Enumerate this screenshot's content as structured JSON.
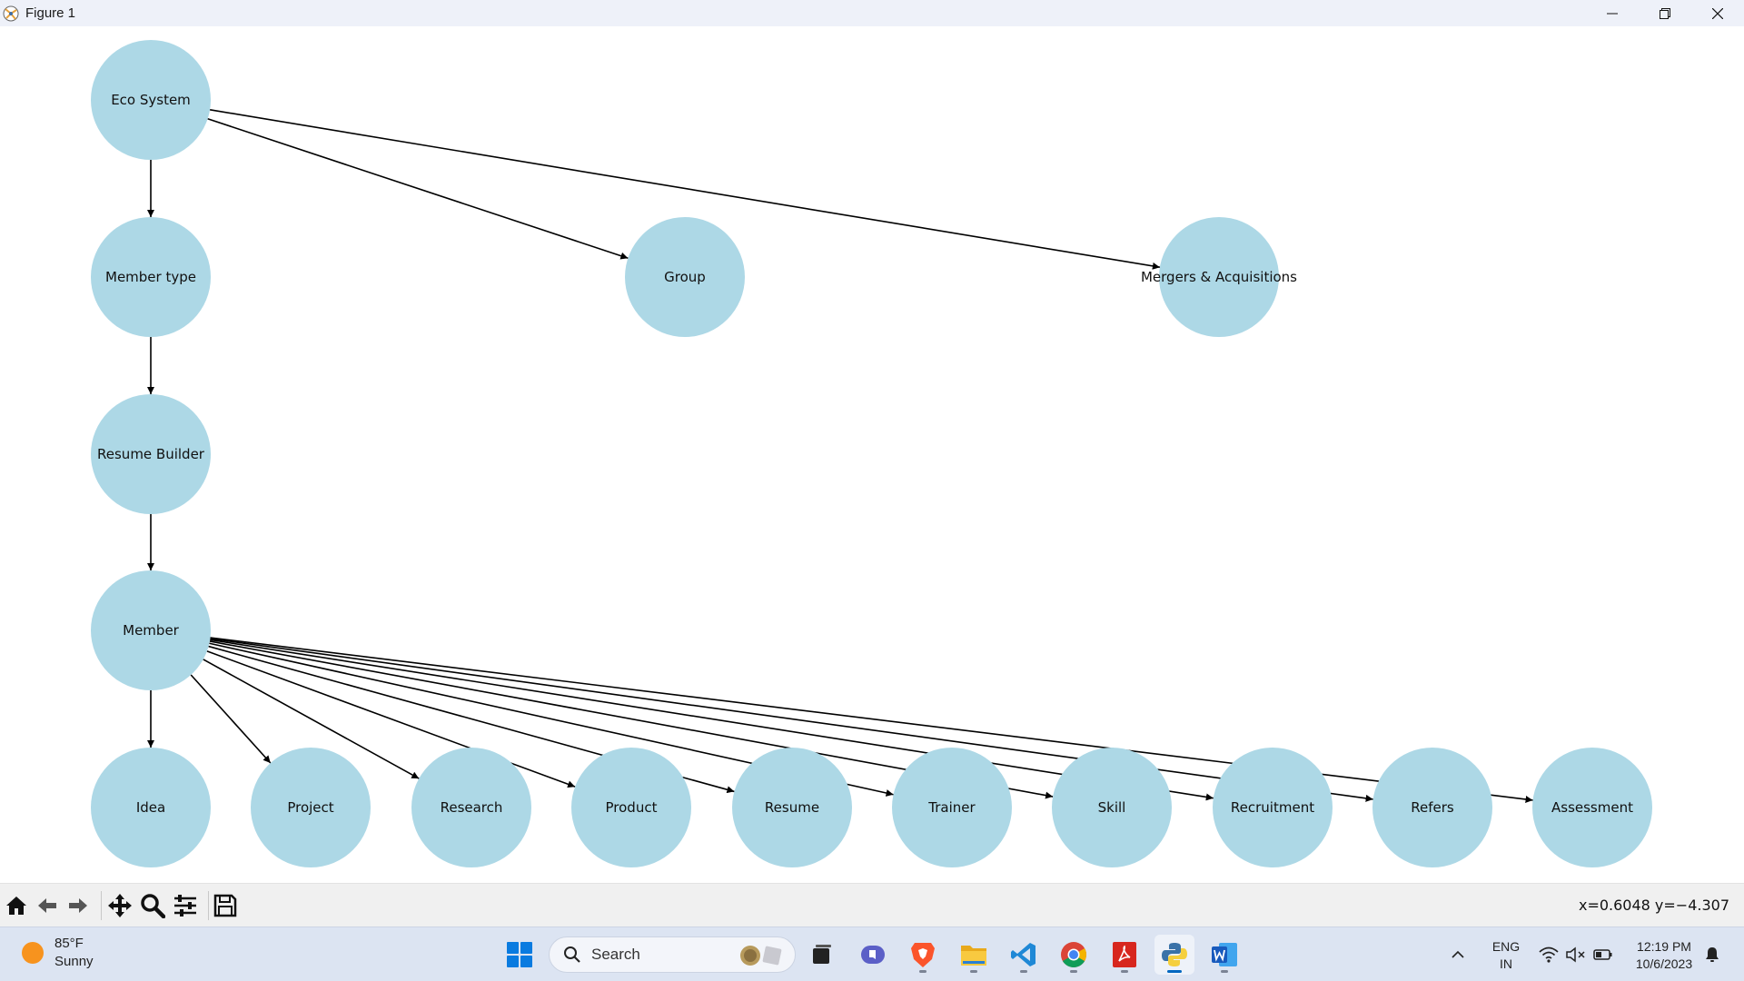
{
  "window": {
    "title": "Figure 1"
  },
  "graph": {
    "nodes": [
      {
        "id": "eco",
        "label": "Eco System"
      },
      {
        "id": "membertype",
        "label": "Member type"
      },
      {
        "id": "group",
        "label": "Group"
      },
      {
        "id": "mergers",
        "label": "Mergers & Acquisitions"
      },
      {
        "id": "resume_builder",
        "label": "Resume Builder"
      },
      {
        "id": "member",
        "label": "Member"
      },
      {
        "id": "idea",
        "label": "Idea"
      },
      {
        "id": "project",
        "label": "Project"
      },
      {
        "id": "research",
        "label": "Research"
      },
      {
        "id": "product",
        "label": "Product"
      },
      {
        "id": "resume",
        "label": "Resume"
      },
      {
        "id": "trainer",
        "label": "Trainer"
      },
      {
        "id": "skill",
        "label": "Skill"
      },
      {
        "id": "recruitment",
        "label": "Recruitment"
      },
      {
        "id": "refers",
        "label": "Refers"
      },
      {
        "id": "assessment",
        "label": "Assessment"
      }
    ],
    "edges": [
      [
        "eco",
        "membertype"
      ],
      [
        "eco",
        "group"
      ],
      [
        "eco",
        "mergers"
      ],
      [
        "membertype",
        "resume_builder"
      ],
      [
        "resume_builder",
        "member"
      ],
      [
        "member",
        "idea"
      ],
      [
        "member",
        "project"
      ],
      [
        "member",
        "research"
      ],
      [
        "member",
        "product"
      ],
      [
        "member",
        "resume"
      ],
      [
        "member",
        "trainer"
      ],
      [
        "member",
        "skill"
      ],
      [
        "member",
        "recruitment"
      ],
      [
        "member",
        "refers"
      ],
      [
        "member",
        "assessment"
      ]
    ],
    "node_color": "#add8e6"
  },
  "toolbar": {
    "buttons": [
      "home-icon",
      "back-arrow-icon",
      "forward-arrow-icon",
      "pan-icon",
      "zoom-icon",
      "subplots-icon",
      "save-icon"
    ],
    "coords": "x=0.6048 y=−4.307"
  },
  "taskbar": {
    "weather_temp": "85°F",
    "weather_desc": "Sunny",
    "search_label": "Search",
    "apps": [
      "start-icon",
      "task-view-icon",
      "teams-icon",
      "brave-icon",
      "file-explorer-icon",
      "vscode-icon",
      "chrome-icon",
      "acrobat-icon",
      "python-icon",
      "word-icon"
    ],
    "lang_line1": "ENG",
    "lang_line2": "IN",
    "time": "12:19 PM",
    "date": "10/6/2023"
  }
}
